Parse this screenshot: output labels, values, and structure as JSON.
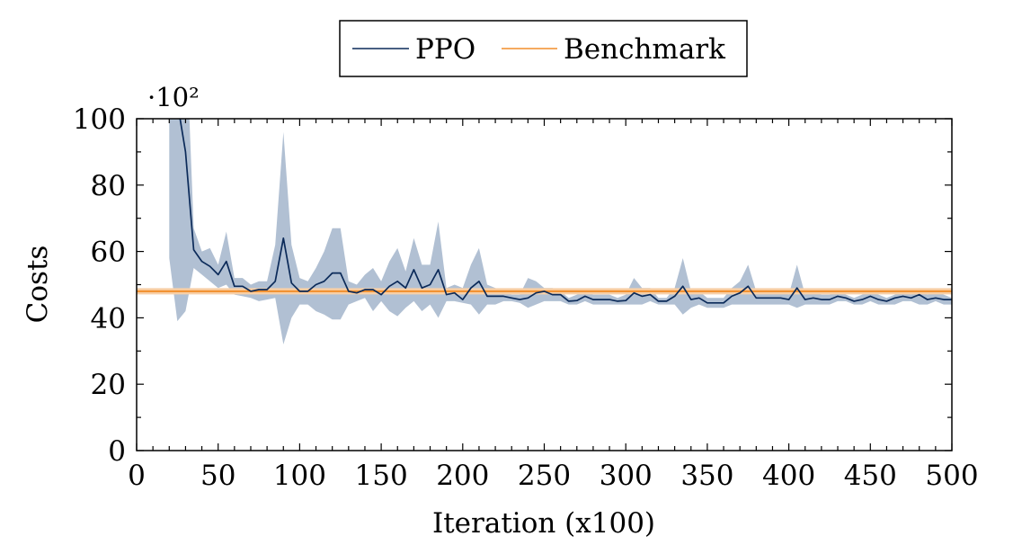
{
  "chart_data": {
    "type": "line",
    "title": "",
    "xlabel": "Iteration (x100)",
    "ylabel": "Costs",
    "y_scale_label": "·10²",
    "xlim": [
      0,
      500
    ],
    "ylim": [
      0,
      100
    ],
    "xticks": [
      0,
      50,
      100,
      150,
      200,
      250,
      300,
      350,
      400,
      450,
      500
    ],
    "yticks": [
      0,
      20,
      40,
      60,
      80,
      100
    ],
    "xtick_labels": [
      "0",
      "50",
      "100",
      "150",
      "200",
      "250",
      "300",
      "350",
      "400",
      "450",
      "500"
    ],
    "ytick_labels": [
      "0",
      "20",
      "40",
      "60",
      "80",
      "100"
    ],
    "legend": {
      "placement": "top-center, outside",
      "entries": [
        "PPO",
        "Benchmark"
      ]
    },
    "grid": false,
    "colors": {
      "ppo": "#0b2a59",
      "band": "#b1c0d3",
      "benchmark": "#f28e2b"
    },
    "series": [
      {
        "name": "PPO",
        "x": [
          20,
          25,
          30,
          35,
          40,
          45,
          50,
          55,
          60,
          65,
          70,
          75,
          80,
          85,
          90,
          95,
          100,
          105,
          110,
          115,
          120,
          125,
          130,
          135,
          140,
          145,
          150,
          155,
          160,
          165,
          170,
          175,
          180,
          185,
          190,
          195,
          200,
          205,
          210,
          215,
          220,
          225,
          230,
          235,
          240,
          245,
          250,
          255,
          260,
          265,
          270,
          275,
          280,
          285,
          290,
          295,
          300,
          305,
          310,
          315,
          320,
          325,
          330,
          335,
          340,
          345,
          350,
          355,
          360,
          365,
          370,
          375,
          380,
          385,
          390,
          395,
          400,
          405,
          410,
          415,
          420,
          425,
          430,
          435,
          440,
          445,
          450,
          455,
          460,
          465,
          470,
          475,
          480,
          485,
          490,
          495,
          500
        ],
        "y": [
          115,
          105,
          90,
          60.5,
          57,
          55.5,
          53,
          57,
          49.5,
          49.5,
          48,
          48.5,
          48.5,
          51,
          64,
          50.5,
          48,
          48,
          50,
          51,
          53.5,
          53.5,
          48,
          47.5,
          48.5,
          48.5,
          47,
          49.5,
          51,
          49,
          54.5,
          49,
          50,
          54.5,
          47,
          47.5,
          45.5,
          49,
          51,
          46.5,
          46.5,
          46.5,
          46,
          45.5,
          46,
          47.5,
          48,
          47,
          47,
          45,
          45.2,
          46.5,
          45.5,
          45.5,
          45.5,
          45,
          45.2,
          47.5,
          46.5,
          47,
          45,
          45,
          46.5,
          49.5,
          45.5,
          46,
          44.5,
          44.5,
          44.5,
          46.5,
          47.5,
          49.5,
          46,
          46,
          46,
          46,
          45.5,
          49,
          45.5,
          46,
          45.5,
          45.5,
          46.5,
          46,
          45,
          45.5,
          46.5,
          45.5,
          45,
          46,
          46.5,
          46,
          47,
          45.5,
          46,
          45.5,
          45.5
        ],
        "band_upper": [
          130,
          130,
          130,
          67,
          60,
          61,
          56,
          66,
          52,
          52,
          50,
          51,
          51,
          62,
          96,
          62,
          52,
          51,
          55,
          60,
          67,
          67,
          51,
          50,
          53,
          55,
          51,
          57,
          61,
          54,
          64,
          56,
          56,
          69,
          49,
          50,
          49,
          56,
          61,
          50,
          49,
          48,
          47,
          47,
          52,
          51,
          49,
          49,
          48,
          46,
          47,
          48,
          47,
          47,
          47,
          46,
          47,
          52,
          49,
          49,
          46,
          46,
          49,
          58,
          48,
          48,
          46,
          46,
          46,
          49,
          51,
          56,
          48,
          48,
          48,
          48,
          47,
          56,
          47,
          48,
          47,
          47,
          48,
          47,
          46,
          47,
          48,
          47,
          46,
          47,
          48,
          47,
          49,
          47,
          48,
          47,
          46
        ],
        "band_lower": [
          58,
          39,
          42,
          55,
          53,
          51,
          49,
          50,
          47,
          46.5,
          46,
          45,
          45.5,
          46,
          32,
          40,
          44,
          44,
          42,
          41,
          39.5,
          39.5,
          44,
          45,
          46,
          42,
          45,
          42,
          40.5,
          43,
          45,
          42,
          44,
          40,
          45,
          45,
          44.5,
          44,
          41,
          44,
          44,
          45,
          45,
          44.5,
          43,
          44,
          45,
          45,
          45,
          44,
          44,
          45,
          44,
          44,
          44,
          44,
          44,
          44,
          44,
          45,
          44,
          44,
          44,
          41,
          43,
          44,
          43,
          43,
          43,
          44,
          44,
          44,
          44,
          44,
          44,
          44,
          44,
          43,
          44,
          44,
          44,
          44,
          45,
          45,
          44,
          44,
          45,
          44,
          44,
          44,
          45,
          45,
          44,
          44,
          45,
          44,
          44
        ]
      },
      {
        "name": "Benchmark",
        "x": [
          0,
          500
        ],
        "y": [
          48,
          48
        ]
      }
    ]
  }
}
